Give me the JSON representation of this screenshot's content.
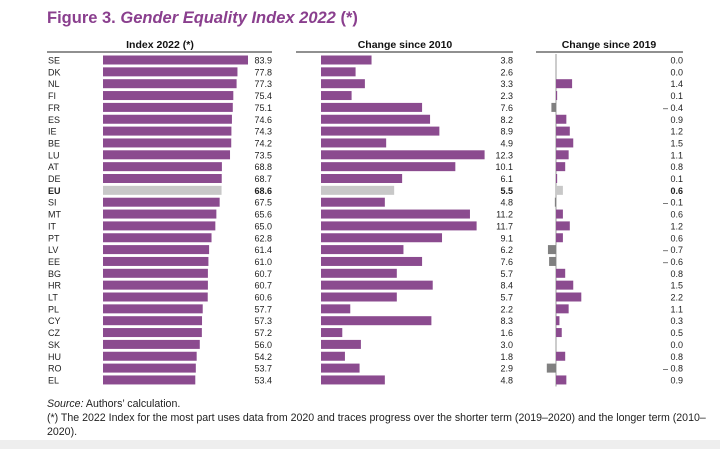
{
  "figure": {
    "label": "Figure 3.",
    "title": "Gender Equality Index 2022",
    "title_suffix": "(*)"
  },
  "colors": {
    "bar": "#8b4b8f",
    "eu_bar": "#c8c8c8",
    "negative_bar": "#808080",
    "title": "#8a3f8e"
  },
  "chart_data": [
    {
      "type": "bar",
      "orientation": "horizontal",
      "title": "Index 2022 (*)",
      "categories": [
        "SE",
        "DK",
        "NL",
        "FI",
        "FR",
        "ES",
        "IE",
        "BE",
        "LU",
        "AT",
        "DE",
        "EU",
        "SI",
        "MT",
        "IT",
        "PT",
        "LV",
        "EE",
        "BG",
        "HR",
        "LT",
        "PL",
        "CY",
        "CZ",
        "SK",
        "HU",
        "RO",
        "EL"
      ],
      "values": [
        83.9,
        77.8,
        77.3,
        75.4,
        75.1,
        74.6,
        74.3,
        74.2,
        73.5,
        68.8,
        68.7,
        68.6,
        67.5,
        65.6,
        65.0,
        62.8,
        61.4,
        61.0,
        60.7,
        60.7,
        60.6,
        57.7,
        57.3,
        57.2,
        56.0,
        54.2,
        53.7,
        53.4
      ],
      "labels": [
        "83.9",
        "77.8",
        "77.3",
        "75.4",
        "75.1",
        "74.6",
        "74.3",
        "74.2",
        "73.5",
        "68.8",
        "68.7",
        "68.6",
        "67.5",
        "65.6",
        "65.0",
        "62.8",
        "61.4",
        "61.0",
        "60.7",
        "60.7",
        "60.6",
        "57.7",
        "57.3",
        "57.2",
        "56.0",
        "54.2",
        "53.7",
        "53.4"
      ],
      "xlim": [
        0,
        100
      ],
      "highlight": "EU"
    },
    {
      "type": "bar",
      "orientation": "horizontal",
      "title": "Change since 2010",
      "categories": [
        "SE",
        "DK",
        "NL",
        "FI",
        "FR",
        "ES",
        "IE",
        "BE",
        "LU",
        "AT",
        "DE",
        "EU",
        "SI",
        "MT",
        "IT",
        "PT",
        "LV",
        "EE",
        "BG",
        "HR",
        "LT",
        "PL",
        "CY",
        "CZ",
        "SK",
        "HU",
        "RO",
        "EL"
      ],
      "values": [
        3.8,
        2.6,
        3.3,
        2.3,
        7.6,
        8.2,
        8.9,
        4.9,
        12.3,
        10.1,
        6.1,
        5.5,
        4.8,
        11.2,
        11.7,
        9.1,
        6.2,
        7.6,
        5.7,
        8.4,
        5.7,
        2.2,
        8.3,
        1.6,
        3.0,
        1.8,
        2.9,
        4.8
      ],
      "labels": [
        "3.8",
        "2.6",
        "3.3",
        "2.3",
        "7.6",
        "8.2",
        "8.9",
        "4.9",
        "12.3",
        "10.1",
        "6.1",
        "5.5",
        "4.8",
        "11.2",
        "11.7",
        "9.1",
        "6.2",
        "7.6",
        "5.7",
        "8.4",
        "5.7",
        "2.2",
        "8.3",
        "1.6",
        "3.0",
        "1.8",
        "2.9",
        "4.8"
      ],
      "xlim": [
        0,
        12.5
      ],
      "highlight": "EU"
    },
    {
      "type": "bar",
      "orientation": "horizontal",
      "title": "Change since 2019",
      "categories": [
        "SE",
        "DK",
        "NL",
        "FI",
        "FR",
        "ES",
        "IE",
        "BE",
        "LU",
        "AT",
        "DE",
        "EU",
        "SI",
        "MT",
        "IT",
        "PT",
        "LV",
        "EE",
        "BG",
        "HR",
        "LT",
        "PL",
        "CY",
        "CZ",
        "SK",
        "HU",
        "RO",
        "EL"
      ],
      "values": [
        0.0,
        0.0,
        1.4,
        0.1,
        -0.4,
        0.9,
        1.2,
        1.5,
        1.1,
        0.8,
        0.1,
        0.6,
        -0.1,
        0.6,
        1.2,
        0.6,
        -0.7,
        -0.6,
        0.8,
        1.5,
        2.2,
        1.1,
        0.3,
        0.5,
        0.0,
        0.8,
        -0.8,
        0.9
      ],
      "labels": [
        "0.0",
        "0.0",
        "1.4",
        "0.1",
        "– 0.4",
        "0.9",
        "1.2",
        "1.5",
        "1.1",
        "0.8",
        "0.1",
        "0.6",
        "– 0.1",
        "0.6",
        "1.2",
        "0.6",
        "– 0.7",
        "– 0.6",
        "0.8",
        "1.5",
        "2.2",
        "1.1",
        "0.3",
        "0.5",
        "0.0",
        "0.8",
        "– 0.8",
        "0.9"
      ],
      "xlim": [
        -1.0,
        2.5
      ],
      "highlight": "EU"
    }
  ],
  "notes": {
    "source_label": "Source:",
    "source_text": " Authors’ calculation.",
    "footnote": "(*) The 2022 Index for the most part uses data from 2020 and traces progress over the shorter term (2019–2020) and the longer term (2010–2020)."
  }
}
